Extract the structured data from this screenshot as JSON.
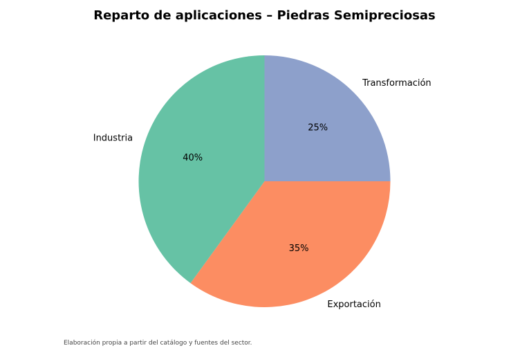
{
  "chart_data": {
    "type": "pie",
    "title": "Reparto de aplicaciones – Piedras Semipreciosas",
    "categories": [
      "Transformación",
      "Exportación",
      "Industria"
    ],
    "values": [
      25,
      35,
      40
    ],
    "value_labels": [
      "25%",
      "35%",
      "40%"
    ],
    "colors": [
      "#8da0cb",
      "#fc8d62",
      "#66c2a5"
    ],
    "start_angle_deg": 90,
    "direction": "clockwise",
    "legend": "none"
  },
  "footer": {
    "source": "Elaboración propia a partir del catálogo y fuentes del sector."
  }
}
